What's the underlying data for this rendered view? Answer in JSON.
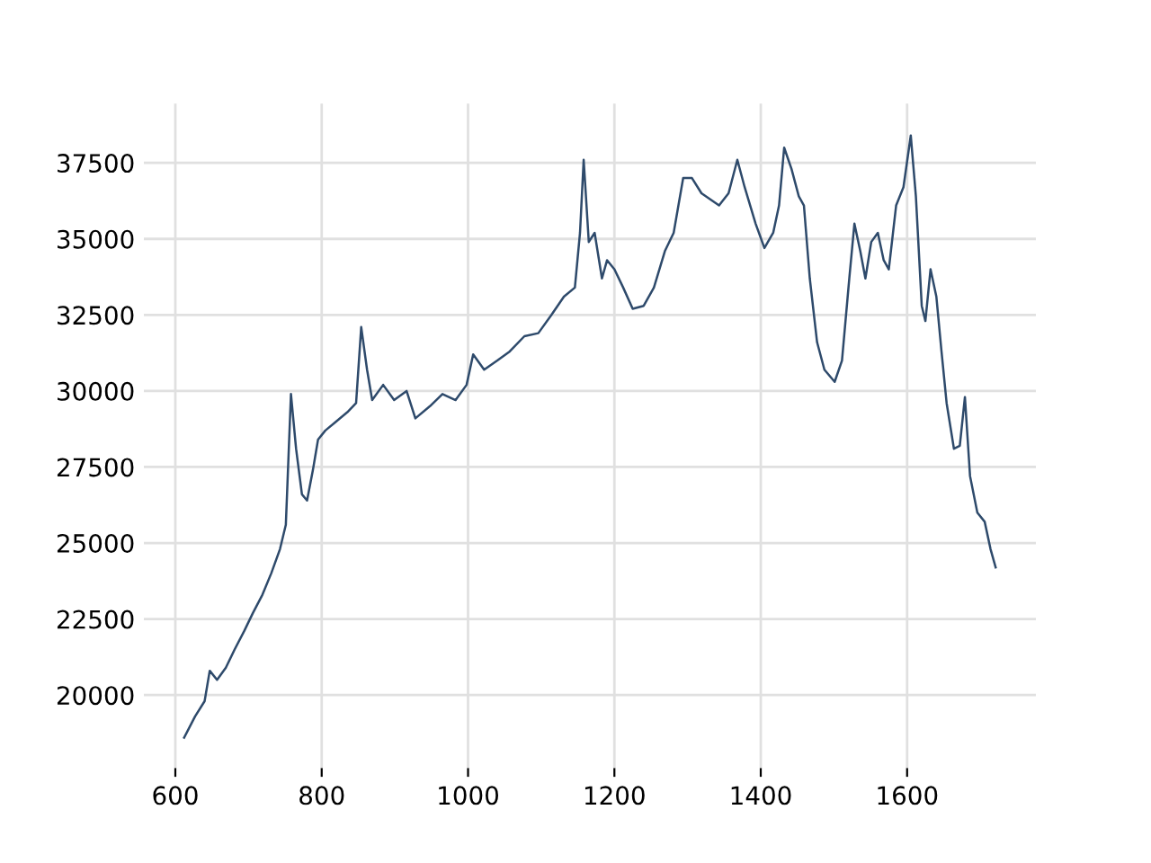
{
  "chart_data": {
    "type": "line",
    "x": [
      612,
      627,
      640,
      647,
      657,
      669,
      681,
      694,
      706,
      719,
      731,
      743,
      751,
      758,
      765,
      773,
      780,
      788,
      795,
      805,
      820,
      835,
      847,
      854,
      862,
      869,
      884,
      899,
      916,
      928,
      948,
      965,
      983,
      998,
      1007,
      1022,
      1040,
      1057,
      1077,
      1096,
      1114,
      1131,
      1146,
      1153,
      1158,
      1165,
      1173,
      1183,
      1190,
      1200,
      1212,
      1225,
      1240,
      1254,
      1269,
      1281,
      1294,
      1306,
      1319,
      1331,
      1343,
      1356,
      1368,
      1378,
      1393,
      1405,
      1417,
      1425,
      1432,
      1442,
      1452,
      1459,
      1467,
      1477,
      1487,
      1501,
      1511,
      1521,
      1528,
      1536,
      1543,
      1551,
      1560,
      1568,
      1575,
      1585,
      1595,
      1605,
      1612,
      1620,
      1625,
      1632,
      1640,
      1647,
      1654,
      1664,
      1672,
      1679,
      1686,
      1696,
      1706,
      1714,
      1721
    ],
    "series": [
      {
        "color": "#2e4a6b",
        "values": [
          18600,
          19300,
          19800,
          20800,
          20500,
          20900,
          21500,
          22100,
          22700,
          23300,
          24000,
          24800,
          25600,
          29900,
          28100,
          26600,
          26400,
          27400,
          28400,
          28700,
          29000,
          29300,
          29600,
          32100,
          30700,
          29700,
          30200,
          29700,
          30000,
          29100,
          29500,
          29900,
          29700,
          30200,
          31200,
          30700,
          31000,
          31300,
          31800,
          31900,
          32500,
          33100,
          33400,
          35200,
          37600,
          34900,
          35200,
          33700,
          34300,
          34000,
          33400,
          32700,
          32800,
          33400,
          34600,
          35200,
          37000,
          37000,
          36500,
          36300,
          36100,
          36500,
          37600,
          36700,
          35500,
          34700,
          35200,
          36100,
          38000,
          37300,
          36400,
          36100,
          33700,
          31600,
          30700,
          30300,
          31000,
          33700,
          35500,
          34600,
          33700,
          34900,
          35200,
          34300,
          34000,
          36100,
          36700,
          38400,
          36400,
          32800,
          32300,
          34000,
          33100,
          31300,
          29600,
          28100,
          28200,
          29800,
          27200,
          26000,
          25700,
          24800,
          24200
        ]
      }
    ],
    "xlim": [
      557,
      1776
    ],
    "ylim": [
      17600,
      39450
    ],
    "xticks": [
      600,
      800,
      1000,
      1200,
      1400,
      1600
    ],
    "yticks": [
      20000,
      22500,
      25000,
      27500,
      30000,
      32500,
      35000,
      37500
    ],
    "grid": true,
    "line_style": "solid",
    "marker": "none",
    "legend": false
  }
}
